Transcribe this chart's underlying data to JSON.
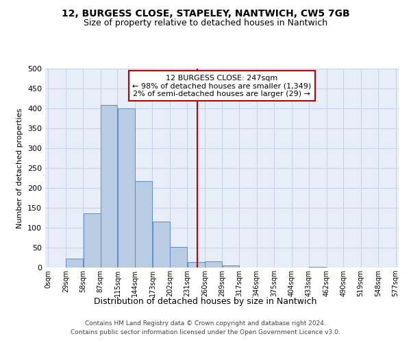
{
  "title": "12, BURGESS CLOSE, STAPELEY, NANTWICH, CW5 7GB",
  "subtitle": "Size of property relative to detached houses in Nantwich",
  "xlabel": "Distribution of detached houses by size in Nantwich",
  "ylabel": "Number of detached properties",
  "bin_edges": [
    0,
    29,
    58,
    87,
    115,
    144,
    173,
    202,
    231,
    260,
    289,
    317,
    346,
    375,
    404,
    433,
    462,
    490,
    519,
    548,
    577
  ],
  "bar_heights": [
    0,
    22,
    137,
    408,
    400,
    217,
    115,
    52,
    13,
    15,
    5,
    0,
    0,
    0,
    0,
    2,
    0,
    0,
    0,
    0
  ],
  "bar_color": "#b8cce4",
  "bar_edge_color": "#5b8dc8",
  "vline_x": 247,
  "vline_color": "#c00000",
  "annotation_line1": "12 BURGESS CLOSE: 247sqm",
  "annotation_line2": "← 98% of detached houses are smaller (1,349)",
  "annotation_line3": "2% of semi-detached houses are larger (29) →",
  "annotation_box_color": "#c00000",
  "annotation_box_fill": "#ffffff",
  "xlim_min": -5,
  "xlim_max": 582,
  "ylim": [
    0,
    500
  ],
  "yticks": [
    0,
    50,
    100,
    150,
    200,
    250,
    300,
    350,
    400,
    450,
    500
  ],
  "xtick_positions": [
    0,
    29,
    58,
    87,
    115,
    144,
    173,
    202,
    231,
    260,
    289,
    317,
    346,
    375,
    404,
    433,
    462,
    490,
    519,
    548,
    577
  ],
  "xtick_labels": [
    "0sqm",
    "29sqm",
    "58sqm",
    "87sqm",
    "115sqm",
    "144sqm",
    "173sqm",
    "202sqm",
    "231sqm",
    "260sqm",
    "289sqm",
    "317sqm",
    "346sqm",
    "375sqm",
    "404sqm",
    "433sqm",
    "462sqm",
    "490sqm",
    "519sqm",
    "548sqm",
    "577sqm"
  ],
  "grid_color": "#c8d4e8",
  "bg_color": "#e8eef8",
  "title_fontsize": 10,
  "subtitle_fontsize": 9,
  "xlabel_fontsize": 9,
  "ylabel_fontsize": 8,
  "tick_fontsize": 7,
  "footer_line1": "Contains HM Land Registry data © Crown copyright and database right 2024.",
  "footer_line2": "Contains public sector information licensed under the Open Government Licence v3.0.",
  "footer_fontsize": 6.5
}
